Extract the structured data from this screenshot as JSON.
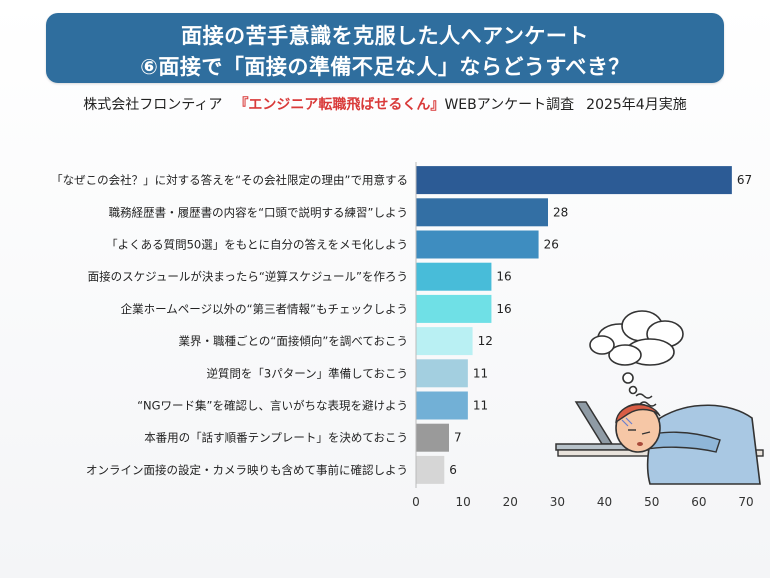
{
  "header": {
    "title_line1": "面接の苦手意識を克服した人へアンケート",
    "title_line2": "⑥面接で「面接の準備不足な人」ならどうすべき？"
  },
  "subtitle": {
    "company": "株式会社フロンティア",
    "brand": "『エンジニア転職飛ばせるくん』",
    "survey": "WEBアンケート調査",
    "date": "2025年4月実施"
  },
  "chart_data": {
    "type": "bar",
    "orientation": "horizontal",
    "categories": [
      "「なぜこの会社？」に対する答えを“その会社限定の理由”で用意する",
      "職務経歴書・履歴書の内容を“口頭で説明する練習”しよう",
      "「よくある質問50選」をもとに自分の答えをメモ化しよう",
      "面接のスケジュールが決まったら“逆算スケジュール”を作ろう",
      "企業ホームページ以外の“第三者情報”もチェックしよう",
      "業界・職種ごとの“面接傾向”を調べておこう",
      "逆質問を「3パターン」準備しておこう",
      "“NGワード集”を確認し、言いがちな表現を避けよう",
      "本番用の「話す順番テンプレート」を決めておこう",
      "オンライン面接の設定・カメラ映りも含めて事前に確認しよう"
    ],
    "values": [
      67,
      28,
      26,
      16,
      16,
      12,
      11,
      11,
      7,
      6
    ],
    "colors": [
      "#2c5b95",
      "#336fa4",
      "#3e8dc0",
      "#48bcd9",
      "#6fe0e6",
      "#b9f0f3",
      "#a3cfe0",
      "#72b0d6",
      "#9a9a9a",
      "#d6d6d6"
    ],
    "xlim": [
      0,
      70
    ],
    "xticks": [
      0,
      10,
      20,
      30,
      40,
      50,
      60,
      70
    ],
    "grid": false,
    "legend": "none",
    "data_labels": true
  }
}
